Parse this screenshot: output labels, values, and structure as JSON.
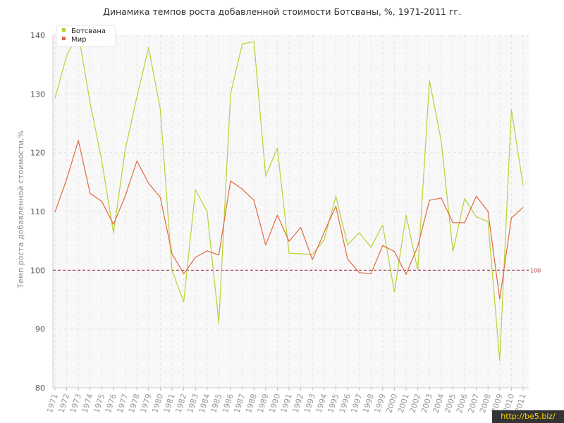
{
  "page": {
    "watermark": "http://be5.biz/"
  },
  "chart_data": {
    "type": "line",
    "title": "Динамика темпов роста добавленной стоимости Ботсваны, %, 1971-2011 гг.",
    "xlabel": "",
    "ylabel": "Темп роста добавленной стоимости,%",
    "ylim": [
      80,
      140
    ],
    "yticks": [
      80,
      90,
      100,
      110,
      120,
      130,
      140
    ],
    "grid": true,
    "legend_position": "top-left",
    "categories": [
      "1971",
      "1972",
      "1973",
      "1974",
      "1975",
      "1976",
      "1977",
      "1978",
      "1979",
      "1980",
      "1981",
      "1982",
      "1983",
      "1984",
      "1985",
      "1986",
      "1987",
      "1988",
      "1989",
      "1990",
      "1991",
      "1992",
      "1993",
      "1994",
      "1995",
      "1996",
      "1997",
      "1998",
      "1999",
      "2000",
      "2001",
      "2002",
      "2003",
      "2004",
      "2005",
      "2006",
      "2007",
      "2008",
      "2009",
      "2010",
      "2011"
    ],
    "series": [
      {
        "name": "Ботсвана",
        "color": "#b5d334",
        "values": [
          129.3,
          136.5,
          140.3,
          128.5,
          118.6,
          106.3,
          120.5,
          129.5,
          137.9,
          127.4,
          100.0,
          94.6,
          113.7,
          110.0,
          91.0,
          130.0,
          138.5,
          138.9,
          116.0,
          120.8,
          102.9,
          102.8,
          102.7,
          105.2,
          112.6,
          104.3,
          106.4,
          103.9,
          107.7,
          96.3,
          109.4,
          100.0,
          132.3,
          122.0,
          103.2,
          112.2,
          109.1,
          108.3,
          84.6,
          127.4,
          114.4
        ]
      },
      {
        "name": "Мир",
        "color": "#e0693f",
        "values": [
          109.9,
          115.5,
          122.1,
          113.1,
          111.7,
          107.8,
          112.6,
          118.6,
          114.8,
          112.4,
          102.8,
          99.4,
          102.2,
          103.3,
          102.6,
          115.2,
          113.8,
          111.9,
          104.3,
          109.4,
          104.9,
          107.3,
          101.8,
          106.5,
          110.9,
          101.9,
          99.6,
          99.4,
          104.2,
          103.2,
          99.3,
          104.1,
          111.9,
          112.3,
          108.1,
          108.1,
          112.6,
          110.0,
          95.1,
          108.9,
          110.7
        ]
      }
    ],
    "reference_line": {
      "value": 100,
      "label": "100",
      "color": "#b03a4a"
    }
  }
}
